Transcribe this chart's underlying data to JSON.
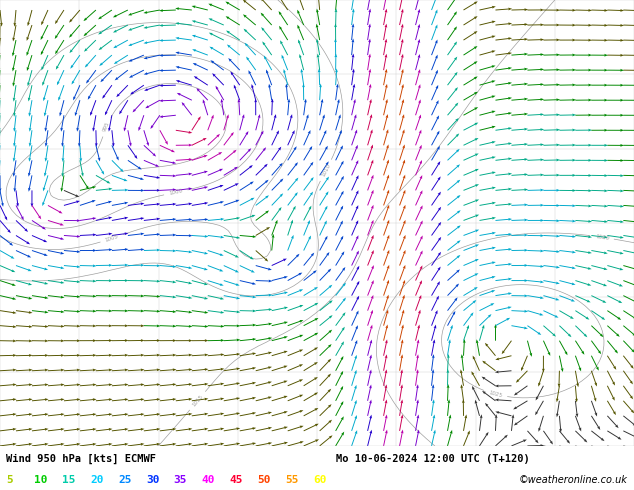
{
  "title_line1": "Wind 950 hPa [kts] ECMWF",
  "title_line2": "Mo 10-06-2024 12:00 UTC (T+120)",
  "credit": "©weatheronline.co.uk",
  "colorbar_values": [
    5,
    10,
    15,
    20,
    25,
    30,
    35,
    40,
    45,
    50,
    55,
    60
  ],
  "colorbar_colors_display": [
    "#aacc00",
    "#00cc00",
    "#00ccaa",
    "#00ccff",
    "#0088ff",
    "#0033ff",
    "#8800ff",
    "#ff00ff",
    "#ff0033",
    "#ff4400",
    "#ff9900",
    "#ffff00"
  ],
  "arrow_speed_thresholds": [
    0,
    5,
    10,
    15,
    20,
    25,
    30,
    35,
    40,
    45,
    50,
    55,
    60
  ],
  "arrow_colors": [
    "#000000",
    "#000000",
    "#888800",
    "#00aa00",
    "#00aaaa",
    "#0055cc",
    "#0000cc",
    "#6600cc",
    "#aa00aa",
    "#cc0055",
    "#cc4400",
    "#cc8800"
  ],
  "bg_color": "#f0f0f0",
  "figsize": [
    6.34,
    4.9
  ],
  "dpi": 100,
  "grid_color": "#cccccc",
  "isobar_color": "#888888",
  "isobar_lw": 0.5
}
